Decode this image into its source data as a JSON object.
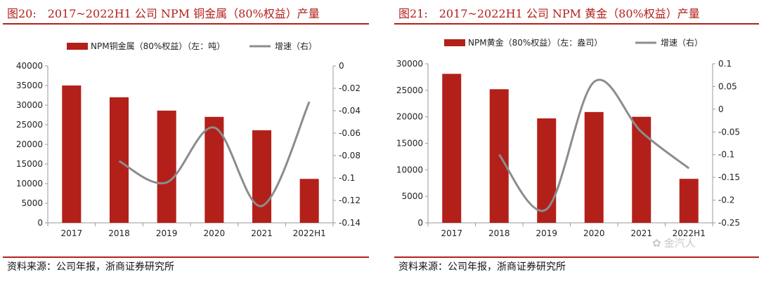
{
  "chart_data": [
    {
      "type": "bar",
      "title": "图20:　2017~2022H1 公司 NPM 铜金属（80%权益）产量",
      "categories": [
        "2017",
        "2018",
        "2019",
        "2020",
        "2021",
        "2022H1"
      ],
      "series": [
        {
          "name": "NPM铜金属（80%权益）（左：吨）",
          "type": "bar",
          "axis": "left",
          "values": [
            35000,
            32000,
            28600,
            27000,
            23600,
            11200
          ]
        },
        {
          "name": "增速（右）",
          "type": "line",
          "axis": "right",
          "values": [
            null,
            -0.085,
            -0.104,
            -0.055,
            -0.125,
            -0.032
          ]
        }
      ],
      "y_left": {
        "range": [
          0,
          40000
        ],
        "ticks": [
          "0",
          "5000",
          "10000",
          "15000",
          "20000",
          "25000",
          "30000",
          "35000",
          "40000"
        ]
      },
      "y_right": {
        "range": [
          -0.14,
          0
        ],
        "ticks": [
          "0",
          "-0.02",
          "-0.04",
          "-0.06",
          "-0.08",
          "-0.1",
          "-0.12",
          "-0.14"
        ]
      },
      "legend": "top",
      "colors": {
        "bar": "#b3201a",
        "line": "#8c8c8c"
      }
    },
    {
      "type": "bar",
      "title": "图21:　2017~2022H1 公司 NPM 黄金（80%权益）产量",
      "categories": [
        "2017",
        "2018",
        "2019",
        "2020",
        "2021",
        "2022H1"
      ],
      "series": [
        {
          "name": "NPM黄金（80%权益）（左：盎司）",
          "type": "bar",
          "axis": "left",
          "values": [
            28100,
            25200,
            19700,
            20900,
            20000,
            8300
          ]
        },
        {
          "name": "增速（右）",
          "type": "line",
          "axis": "right",
          "values": [
            null,
            -0.1,
            -0.22,
            0.06,
            -0.05,
            -0.13
          ]
        }
      ],
      "y_left": {
        "range": [
          0,
          30000
        ],
        "ticks": [
          "0",
          "5000",
          "10000",
          "15000",
          "20000",
          "25000",
          "30000"
        ]
      },
      "y_right": {
        "range": [
          -0.25,
          0.1
        ],
        "ticks": [
          "0.1",
          "0.05",
          "0",
          "-0.05",
          "-0.1",
          "-0.15",
          "-0.2",
          "-0.25"
        ]
      },
      "legend": "top",
      "colors": {
        "bar": "#b3201a",
        "line": "#8c8c8c"
      }
    }
  ],
  "footer": {
    "left_source": "资料来源：公司年报，浙商证券研究所",
    "right_source": "资料来源：公司年报，浙商证券研究所"
  },
  "watermark": {
    "icon": "wechat-icon",
    "text": "金汽人"
  }
}
